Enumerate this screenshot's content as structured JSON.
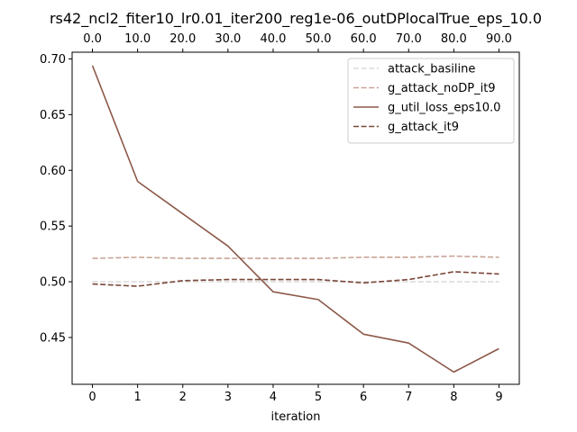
{
  "chart_data": {
    "type": "line",
    "title": "rs42_ncl2_fiter10_lr0.01_iter200_reg1e-06_outDPlocalTrue_eps_10.0",
    "xlabel": "iteration",
    "ylabel": "",
    "x": [
      0,
      1,
      2,
      3,
      4,
      5,
      6,
      7,
      8,
      9
    ],
    "xlim": [
      -0.45,
      9.45
    ],
    "ylim": [
      0.408,
      0.706
    ],
    "x_ticks": [
      "0",
      "1",
      "2",
      "3",
      "4",
      "5",
      "6",
      "7",
      "8",
      "9"
    ],
    "y_ticks": [
      0.45,
      0.5,
      0.55,
      0.6,
      0.65,
      0.7
    ],
    "y_tick_labels": [
      "0.45",
      "0.50",
      "0.55",
      "0.60",
      "0.65",
      "0.70"
    ],
    "top_x_ticks": [
      "0.0",
      "10.0",
      "20.0",
      "30.0",
      "40.0",
      "50.0",
      "60.0",
      "70.0",
      "80.0",
      "90.0"
    ],
    "grid": false,
    "legend_position": "top-right",
    "series": [
      {
        "name": "attack_basiline",
        "color": "#dcdcdc",
        "dash": "dashed",
        "values": [
          0.5,
          0.5,
          0.5,
          0.5,
          0.5,
          0.5,
          0.5,
          0.5,
          0.5,
          0.5
        ]
      },
      {
        "name": "g_attack_noDP_it9",
        "color": "#c8a498",
        "dash": "dashed",
        "values": [
          0.521,
          0.522,
          0.521,
          0.521,
          0.521,
          0.521,
          0.522,
          0.522,
          0.523,
          0.522
        ]
      },
      {
        "name": "g_util_loss_eps10.0",
        "color": "#8c5848",
        "dash": "solid",
        "values": [
          0.694,
          0.59,
          0.561,
          0.532,
          0.491,
          0.484,
          0.453,
          0.445,
          0.419,
          0.44
        ]
      },
      {
        "name": "g_attack_it9",
        "color": "#7a4638",
        "dash": "dashed",
        "values": [
          0.498,
          0.496,
          0.501,
          0.502,
          0.502,
          0.502,
          0.499,
          0.502,
          0.509,
          0.507
        ]
      }
    ]
  }
}
